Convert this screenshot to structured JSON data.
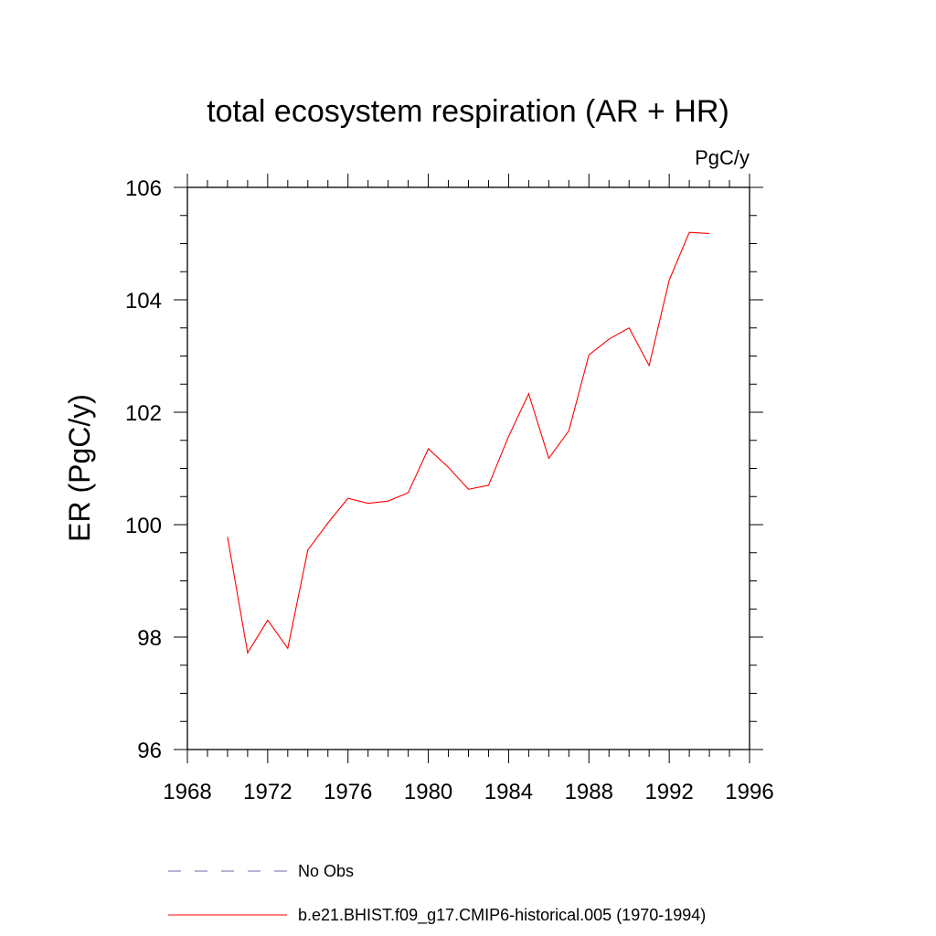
{
  "chart_data": {
    "type": "line",
    "title": "total ecosystem respiration (AR + HR)",
    "units_label": "PgC/y",
    "ylabel": "ER  (PgC/y)",
    "xlabel": "",
    "xlim": [
      1968,
      1996
    ],
    "ylim": [
      96,
      106
    ],
    "x_ticks": [
      1968,
      1972,
      1976,
      1980,
      1984,
      1988,
      1992,
      1996
    ],
    "y_ticks": [
      96,
      98,
      100,
      102,
      104,
      106
    ],
    "grid": false,
    "legend_position": "bottom",
    "series": [
      {
        "name": "b.e21.BHIST.f09_g17.CMIP6-historical.005 (1970-1994)",
        "color": "#ff0000",
        "style": "solid",
        "x": [
          1970,
          1971,
          1972,
          1973,
          1974,
          1975,
          1976,
          1977,
          1978,
          1979,
          1980,
          1981,
          1982,
          1983,
          1984,
          1985,
          1986,
          1987,
          1988,
          1989,
          1990,
          1991,
          1992,
          1993,
          1994
        ],
        "y": [
          99.78,
          97.72,
          98.3,
          97.8,
          99.55,
          100.03,
          100.47,
          100.38,
          100.42,
          100.57,
          101.35,
          101.02,
          100.63,
          100.7,
          101.57,
          102.33,
          101.18,
          101.67,
          103.02,
          103.3,
          103.5,
          102.83,
          104.35,
          105.2,
          105.18
        ]
      }
    ],
    "legend": [
      {
        "label": "No Obs",
        "color": "#6a6aaa",
        "style": "dashed"
      },
      {
        "label": "b.e21.BHIST.f09_g17.CMIP6-historical.005 (1970-1994)",
        "color": "#ff0000",
        "style": "solid"
      }
    ]
  }
}
